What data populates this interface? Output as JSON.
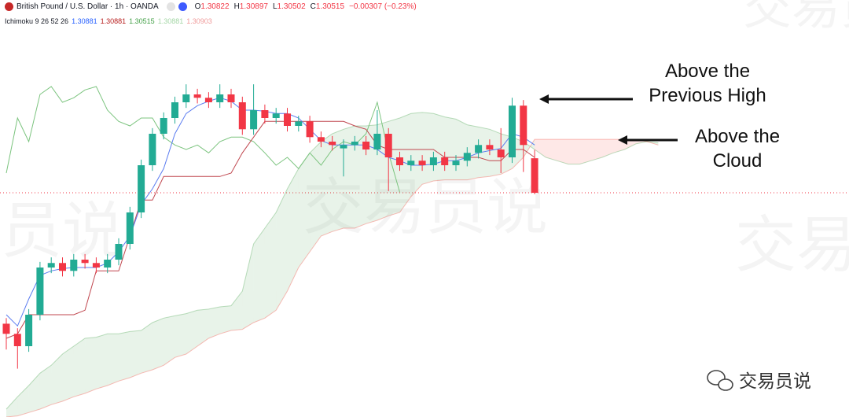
{
  "header": {
    "title": "British Pound / U.S. Dollar · 1h · OANDA",
    "ohlc": [
      {
        "label": "O",
        "value": "1.30822"
      },
      {
        "label": "H",
        "value": "1.30897"
      },
      {
        "label": "L",
        "value": "1.30502"
      },
      {
        "label": "C",
        "value": "1.30515"
      }
    ],
    "change": "−0.00307 (−0.23%)",
    "value_color": "#f23645",
    "indicator": "Ichimoku 9 26 52 26",
    "indicator_values": [
      {
        "value": "1.30881",
        "color": "#2962ff"
      },
      {
        "value": "1.30881",
        "color": "#b71c1c"
      },
      {
        "value": "1.30515",
        "color": "#43a047"
      },
      {
        "value": "1.30881",
        "color": "#a5d6a7"
      },
      {
        "value": "1.30903",
        "color": "#ef9a9a"
      }
    ]
  },
  "annotations": [
    {
      "lines": [
        "Above the",
        "Previous High"
      ]
    },
    {
      "lines": [
        "Above the",
        "Cloud"
      ]
    }
  ],
  "watermark": "交易员说",
  "logo_text": "交易员说",
  "chart_data": {
    "type": "candlestick",
    "ylim": [
      1.2852,
      1.3223
    ],
    "up_color": "#22ab94",
    "down_color": "#f23645",
    "price_line_color": "#f23645",
    "candles": {
      "open": [
        1.2935,
        1.2926,
        1.2915,
        1.2943,
        1.2985,
        1.2989,
        1.2982,
        1.2992,
        1.2989,
        1.2985,
        1.2992,
        1.3006,
        1.3034,
        1.3076,
        1.3104,
        1.3118,
        1.3132,
        1.3139,
        1.3136,
        1.3132,
        1.3139,
        1.3132,
        1.3108,
        1.3125,
        1.3118,
        1.3122,
        1.3111,
        1.3115,
        1.3101,
        1.3097,
        1.3091,
        1.3094,
        1.3097,
        1.309,
        1.3104,
        1.3083,
        1.3076,
        1.308,
        1.3076,
        1.3083,
        1.3076,
        1.308,
        1.3087,
        1.3094,
        1.309,
        1.3083,
        1.3129,
        1.30822
      ],
      "high": [
        1.294,
        1.2931,
        1.2948,
        1.299,
        1.2994,
        1.2994,
        1.2997,
        1.2997,
        1.2994,
        1.2997,
        1.3011,
        1.3039,
        1.3081,
        1.3109,
        1.3123,
        1.3137,
        1.3148,
        1.3144,
        1.3141,
        1.3148,
        1.3144,
        1.3137,
        1.3148,
        1.313,
        1.3127,
        1.3127,
        1.312,
        1.312,
        1.3106,
        1.3102,
        1.3099,
        1.3102,
        1.3102,
        1.3125,
        1.3109,
        1.3088,
        1.3085,
        1.3085,
        1.3088,
        1.3088,
        1.3085,
        1.3092,
        1.3099,
        1.3099,
        1.3109,
        1.3136,
        1.3134,
        1.30897
      ],
      "low": [
        1.2912,
        1.2895,
        1.291,
        1.2938,
        1.298,
        1.2977,
        1.2977,
        1.2984,
        1.298,
        1.298,
        1.2987,
        1.3001,
        1.3029,
        1.3071,
        1.3099,
        1.3113,
        1.3127,
        1.3131,
        1.3127,
        1.3127,
        1.3127,
        1.3103,
        1.3103,
        1.3113,
        1.3113,
        1.3106,
        1.3106,
        1.3096,
        1.3092,
        1.3089,
        1.3066,
        1.3089,
        1.3085,
        1.3085,
        1.3053,
        1.3071,
        1.3071,
        1.3071,
        1.3071,
        1.3071,
        1.3071,
        1.3075,
        1.3082,
        1.3085,
        1.3069,
        1.3078,
        1.307,
        1.30502
      ],
      "close": [
        1.2926,
        1.2915,
        1.2943,
        1.2985,
        1.2989,
        1.2982,
        1.2992,
        1.2989,
        1.2985,
        1.2992,
        1.3006,
        1.3034,
        1.3076,
        1.3104,
        1.3118,
        1.3132,
        1.3139,
        1.3136,
        1.3132,
        1.3139,
        1.3132,
        1.3108,
        1.3125,
        1.3118,
        1.3122,
        1.3111,
        1.3115,
        1.3101,
        1.3097,
        1.3094,
        1.3094,
        1.3097,
        1.309,
        1.3104,
        1.3083,
        1.3076,
        1.308,
        1.3076,
        1.3083,
        1.3076,
        1.308,
        1.3087,
        1.3094,
        1.309,
        1.3083,
        1.3129,
        1.3094,
        1.30515
      ]
    },
    "series": [
      {
        "color": "#5b7cf0",
        "values": [
          1.2943,
          1.2933,
          1.2957,
          1.2978,
          1.2982,
          1.2984,
          1.2985,
          1.2985,
          1.2985,
          1.2989,
          1.2999,
          1.3013,
          1.3041,
          1.3055,
          1.3073,
          1.3104,
          1.3122,
          1.3129,
          1.3133,
          1.3136,
          1.3133,
          1.3125,
          1.3125,
          1.3124,
          1.3122,
          1.3122,
          1.3118,
          1.3108,
          1.3098,
          1.3094,
          1.3094,
          1.3094,
          1.3094,
          1.309,
          1.3083,
          1.308,
          1.3076,
          1.3076,
          1.3077,
          1.308,
          1.308,
          1.3083,
          1.3087,
          1.3089,
          1.3091,
          1.3104,
          1.3101,
          1.3094
        ]
      },
      {
        "color": "#c0474f",
        "values": [
          1.2922,
          1.2926,
          1.2943,
          1.2943,
          1.2943,
          1.2943,
          1.2943,
          1.2947,
          1.2982,
          1.2982,
          1.2982,
          1.3013,
          1.3045,
          1.3045,
          1.3066,
          1.3066,
          1.3066,
          1.3066,
          1.3066,
          1.3066,
          1.3069,
          1.3087,
          1.3101,
          1.3115,
          1.3115,
          1.3115,
          1.3115,
          1.3115,
          1.3115,
          1.3115,
          1.3115,
          1.3111,
          1.3108,
          1.3094,
          1.309,
          1.309,
          1.309,
          1.309,
          1.309,
          1.3083,
          1.3083,
          1.3083,
          1.3083,
          1.308,
          1.308,
          1.309,
          1.309,
          1.3083
        ]
      },
      {
        "color": "#7cc47f",
        "values": [
          1.3069,
          1.3118,
          1.3097,
          1.3139,
          1.3146,
          1.3132,
          1.3136,
          1.3143,
          1.3146,
          1.3125,
          1.3115,
          1.3111,
          1.3118,
          1.3118,
          1.3101,
          1.3094,
          1.309,
          1.3094,
          1.3087,
          1.3097,
          1.3101,
          1.3101,
          1.3097,
          1.3087,
          1.3076,
          1.3083,
          1.3073,
          1.3087,
          1.3076,
          1.309,
          1.3097,
          1.3094,
          1.3104,
          1.3132,
          1.3087,
          1.3052,
          null,
          null,
          null,
          null,
          null,
          null,
          null,
          null,
          null,
          null,
          null,
          null
        ]
      }
    ],
    "cloud": {
      "up_color": "#43a047",
      "down_color": "#f44336",
      "span_a": [
        1.2859,
        1.287,
        1.288,
        1.2891,
        1.2898,
        1.2908,
        1.2915,
        1.2922,
        1.2923,
        1.2926,
        1.2926,
        1.2928,
        1.2929,
        1.2936,
        1.294,
        1.2942,
        1.2944,
        1.2947,
        1.2948,
        1.295,
        1.2951,
        1.2964,
        1.3006,
        1.302,
        1.3034,
        1.3055,
        1.3073,
        1.3087,
        1.3097,
        1.3104,
        1.3108,
        1.3111,
        1.3111,
        1.3112,
        1.3115,
        1.3118,
        1.3122,
        1.3123,
        1.3122,
        1.3119,
        1.3117,
        1.3112,
        1.311,
        1.3108,
        1.3104,
        1.3101,
        1.3097,
        1.309,
        1.3083,
        1.308,
        1.3077,
        1.3077,
        1.308,
        1.3083,
        1.3087,
        1.309,
        1.3095,
        1.3097,
        1.3096
      ],
      "span_b": [
        1.2852,
        1.2853,
        1.2856,
        1.2859,
        1.2863,
        1.2866,
        1.287,
        1.2873,
        1.2877,
        1.288,
        1.2884,
        1.2887,
        1.2891,
        1.2894,
        1.2898,
        1.2905,
        1.2908,
        1.2915,
        1.2922,
        1.2926,
        1.2929,
        1.293,
        1.2936,
        1.294,
        1.2947,
        1.2964,
        1.2985,
        1.2999,
        1.3013,
        1.3017,
        1.302,
        1.302,
        1.3024,
        1.3027,
        1.3031,
        1.3034,
        1.3048,
        1.3059,
        1.3062,
        1.3063,
        1.3063,
        1.3063,
        1.3065,
        1.3066,
        1.3068,
        1.3073,
        1.3083,
        1.3099,
        1.3099,
        1.3099,
        1.3099,
        1.3099,
        1.3099,
        1.3099,
        1.3099,
        1.3099,
        1.3099,
        1.3097,
        1.3094
      ]
    }
  }
}
